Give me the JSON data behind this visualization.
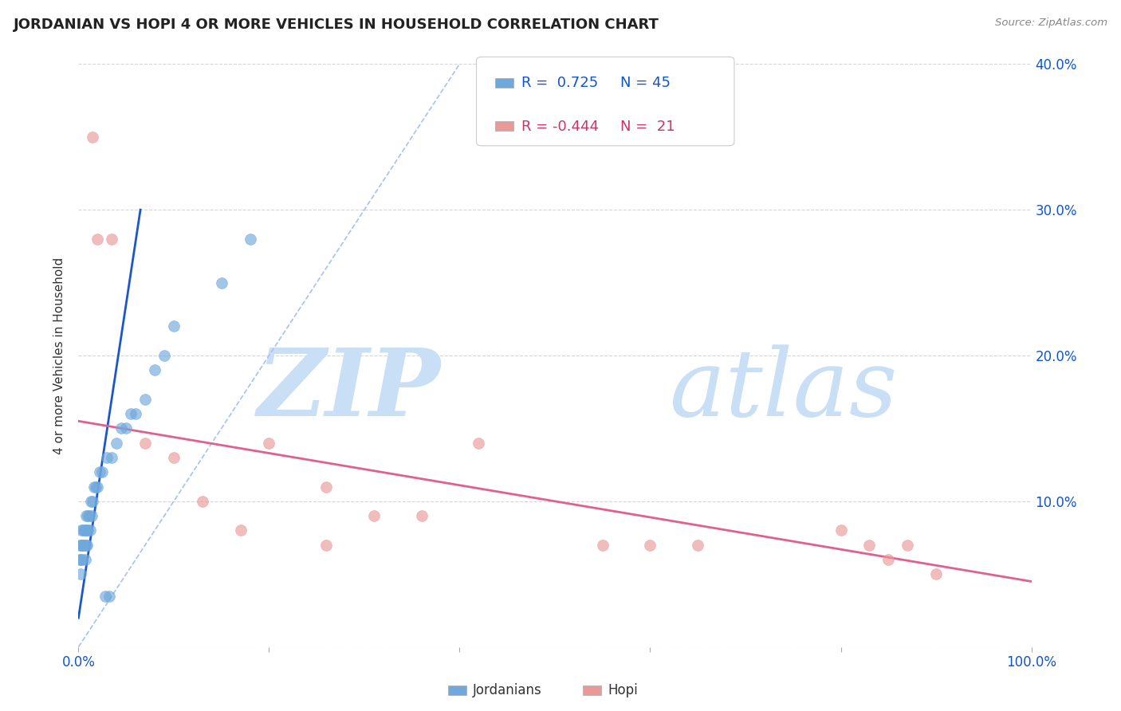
{
  "title": "JORDANIAN VS HOPI 4 OR MORE VEHICLES IN HOUSEHOLD CORRELATION CHART",
  "source_text": "Source: ZipAtlas.com",
  "ylabel": "4 or more Vehicles in Household",
  "xlim": [
    0,
    100
  ],
  "ylim": [
    0,
    40
  ],
  "xticks": [
    0,
    20,
    40,
    60,
    80,
    100
  ],
  "xticklabels": [
    "0.0%",
    "",
    "",
    "",
    "",
    "100.0%"
  ],
  "yticks": [
    0,
    10,
    20,
    30,
    40
  ],
  "right_yticklabels": [
    "",
    "10.0%",
    "20.0%",
    "30.0%",
    "40.0%"
  ],
  "jordanian_color": "#6fa8dc",
  "hopi_color": "#ea9999",
  "jordanian_line_color": "#1a56cc",
  "hopi_line_color": "#e06090",
  "dashed_line_color": "#a4c2f4",
  "legend_r_jordanian": "0.725",
  "legend_n_jordanian": "45",
  "legend_r_hopi": "-0.444",
  "legend_n_hopi": "21",
  "watermark_zip": "ZIP",
  "watermark_atlas": "atlas",
  "watermark_color": "#c9dff5",
  "jordanian_x": [
    0.1,
    0.15,
    0.2,
    0.25,
    0.3,
    0.3,
    0.4,
    0.4,
    0.5,
    0.5,
    0.6,
    0.6,
    0.7,
    0.7,
    0.8,
    0.8,
    0.9,
    0.9,
    1.0,
    1.0,
    1.1,
    1.2,
    1.3,
    1.4,
    1.5,
    1.6,
    1.8,
    2.0,
    2.2,
    2.5,
    3.0,
    3.5,
    4.0,
    4.5,
    5.0,
    5.5,
    6.0,
    7.0,
    8.0,
    9.0,
    10.0,
    15.0,
    18.0,
    2.8,
    3.2
  ],
  "jordanian_y": [
    6,
    7,
    5,
    6,
    8,
    7,
    7,
    6,
    8,
    7,
    8,
    7,
    6,
    8,
    7,
    9,
    8,
    7,
    9,
    8,
    9,
    8,
    10,
    9,
    10,
    11,
    11,
    11,
    12,
    12,
    13,
    13,
    14,
    15,
    15,
    16,
    16,
    17,
    19,
    20,
    22,
    25,
    28,
    3.5,
    3.5
  ],
  "hopi_x": [
    1.5,
    3.5,
    7.0,
    10.0,
    13.0,
    17.0,
    20.0,
    26.0,
    31.0,
    36.0,
    42.0,
    55.0,
    60.0,
    65.0,
    80.0,
    83.0,
    85.0,
    87.0,
    90.0,
    2.0,
    26.0
  ],
  "hopi_y": [
    35,
    28,
    14,
    13,
    10,
    8,
    14,
    11,
    9,
    9,
    14,
    7,
    7,
    7,
    8,
    7,
    6,
    7,
    5,
    28,
    7
  ],
  "jordanian_line_x": [
    0.0,
    6.5
  ],
  "jordanian_line_y": [
    2.0,
    30.0
  ],
  "hopi_line_x": [
    0,
    100
  ],
  "hopi_line_y": [
    15.5,
    4.5
  ],
  "dashed_line_x": [
    0,
    40
  ],
  "dashed_line_y": [
    0,
    40
  ],
  "background_color": "#ffffff",
  "grid_color": "#cccccc",
  "title_fontsize": 13,
  "tick_color": "#1155cc",
  "axis_fontsize": 11
}
